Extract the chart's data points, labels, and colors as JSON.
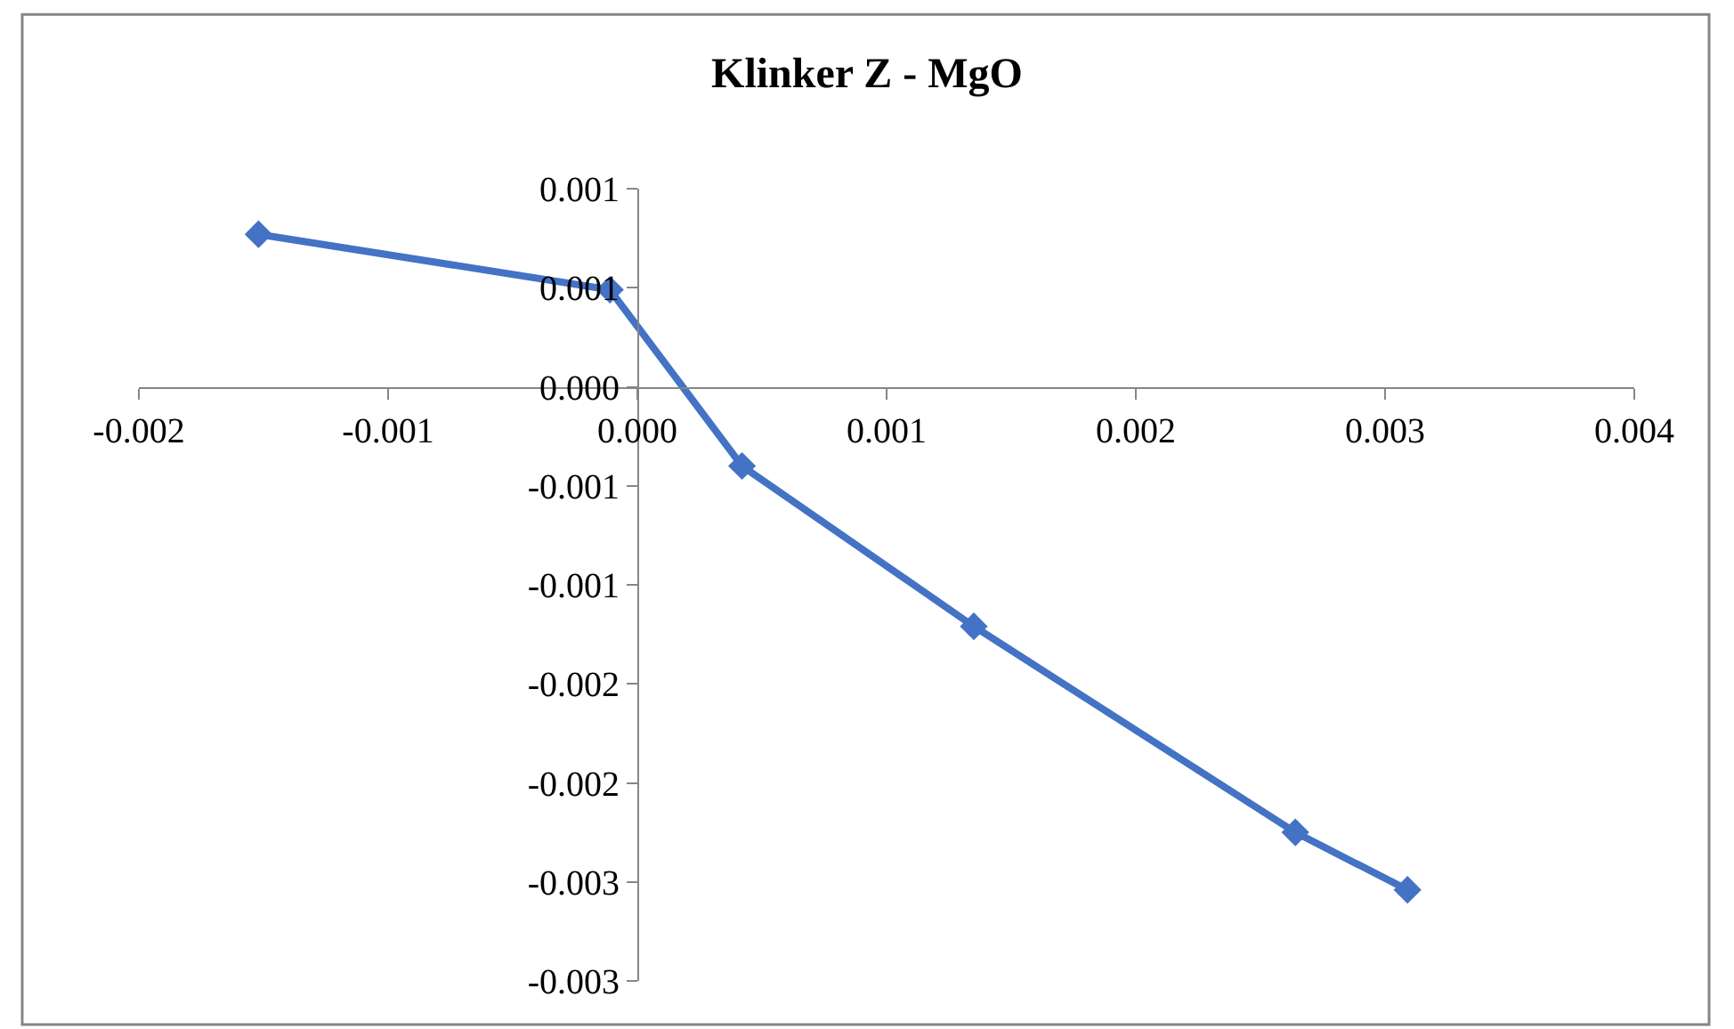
{
  "chart_data": {
    "type": "line",
    "title": "Klinker Z - MgO",
    "x": [
      -0.00152,
      -0.00011,
      0.00042,
      0.00135,
      0.00264,
      0.00309
    ],
    "series": [
      {
        "color": "#4472c4",
        "values": [
          0.00077,
          0.00049,
          -0.0004,
          -0.00121,
          -0.00225,
          -0.00254
        ]
      }
    ],
    "xlim": [
      -0.002,
      0.004
    ],
    "xticks": [
      -0.002,
      -0.001,
      {
        "value": 0,
        "label": "0.000"
      },
      0.001,
      0.002,
      0.003,
      0.004
    ],
    "ylim": [
      -0.003,
      0.001
    ],
    "yticks": [
      0.001,
      {
        "value": 0.0005,
        "label": "0.001"
      },
      {
        "value": 0,
        "label": "0.000"
      },
      {
        "value": -0.0005,
        "label": "-0.001"
      },
      -0.001,
      {
        "value": -0.0015,
        "label": "-0.002"
      },
      -0.002,
      {
        "value": -0.0025,
        "label": "-0.003"
      },
      -0.003
    ],
    "marker": "diamond",
    "line_style": "solid"
  }
}
